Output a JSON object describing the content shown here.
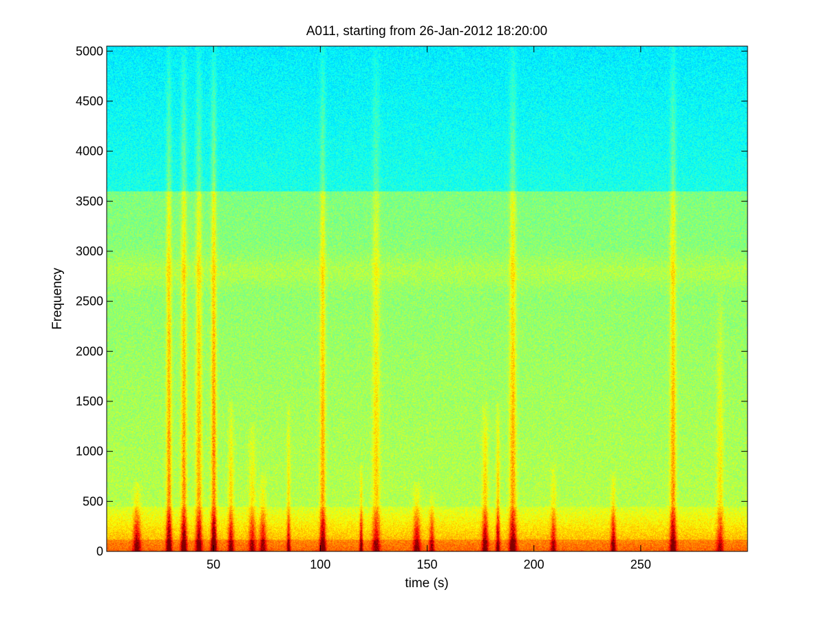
{
  "chart_data": {
    "type": "heatmap",
    "subtype": "spectrogram",
    "title": "A011, starting from 26-Jan-2012 18:20:00",
    "xlabel": "time (s)",
    "ylabel": "Frequency",
    "xlim": [
      0,
      300
    ],
    "ylim": [
      0,
      5050
    ],
    "xticks": [
      50,
      100,
      150,
      200,
      250
    ],
    "yticks": [
      0,
      500,
      1000,
      1500,
      2000,
      2500,
      3000,
      3500,
      4000,
      4500,
      5000
    ],
    "grid": false,
    "colormap": "jet",
    "colors": {
      "low": "#00c8e6",
      "mid": "#5fe6a0",
      "high": "#f0f000",
      "peak": "#d21e14"
    },
    "noise_floor_band": {
      "yellow_green_below_hz": 3600,
      "cyan_above_hz": 3600
    },
    "persistent_band": {
      "center_hz": 2800,
      "width_hz": 300,
      "intensity": 0.55
    },
    "low_freq_energy_band_hz": 450,
    "transients": [
      {
        "time_s": 14,
        "max_freq_hz": 700,
        "intensity": 0.7
      },
      {
        "time_s": 29,
        "max_freq_hz": 5050,
        "intensity": 0.9
      },
      {
        "time_s": 36,
        "max_freq_hz": 5050,
        "intensity": 0.9
      },
      {
        "time_s": 43,
        "max_freq_hz": 5050,
        "intensity": 0.8
      },
      {
        "time_s": 50,
        "max_freq_hz": 5050,
        "intensity": 1.0
      },
      {
        "time_s": 58,
        "max_freq_hz": 1500,
        "intensity": 0.65
      },
      {
        "time_s": 68,
        "max_freq_hz": 1300,
        "intensity": 0.55
      },
      {
        "time_s": 73,
        "max_freq_hz": 800,
        "intensity": 0.6
      },
      {
        "time_s": 85,
        "max_freq_hz": 1500,
        "intensity": 0.6
      },
      {
        "time_s": 101,
        "max_freq_hz": 5050,
        "intensity": 0.85
      },
      {
        "time_s": 119,
        "max_freq_hz": 900,
        "intensity": 0.7
      },
      {
        "time_s": 126,
        "max_freq_hz": 5050,
        "intensity": 0.6
      },
      {
        "time_s": 145,
        "max_freq_hz": 700,
        "intensity": 0.65
      },
      {
        "time_s": 152,
        "max_freq_hz": 600,
        "intensity": 0.55
      },
      {
        "time_s": 177,
        "max_freq_hz": 1500,
        "intensity": 0.75
      },
      {
        "time_s": 183,
        "max_freq_hz": 1500,
        "intensity": 0.75
      },
      {
        "time_s": 190,
        "max_freq_hz": 5050,
        "intensity": 0.85
      },
      {
        "time_s": 209,
        "max_freq_hz": 900,
        "intensity": 0.55
      },
      {
        "time_s": 237,
        "max_freq_hz": 800,
        "intensity": 0.7
      },
      {
        "time_s": 265,
        "max_freq_hz": 5050,
        "intensity": 0.85
      },
      {
        "time_s": 287,
        "max_freq_hz": 2600,
        "intensity": 0.5
      }
    ]
  }
}
